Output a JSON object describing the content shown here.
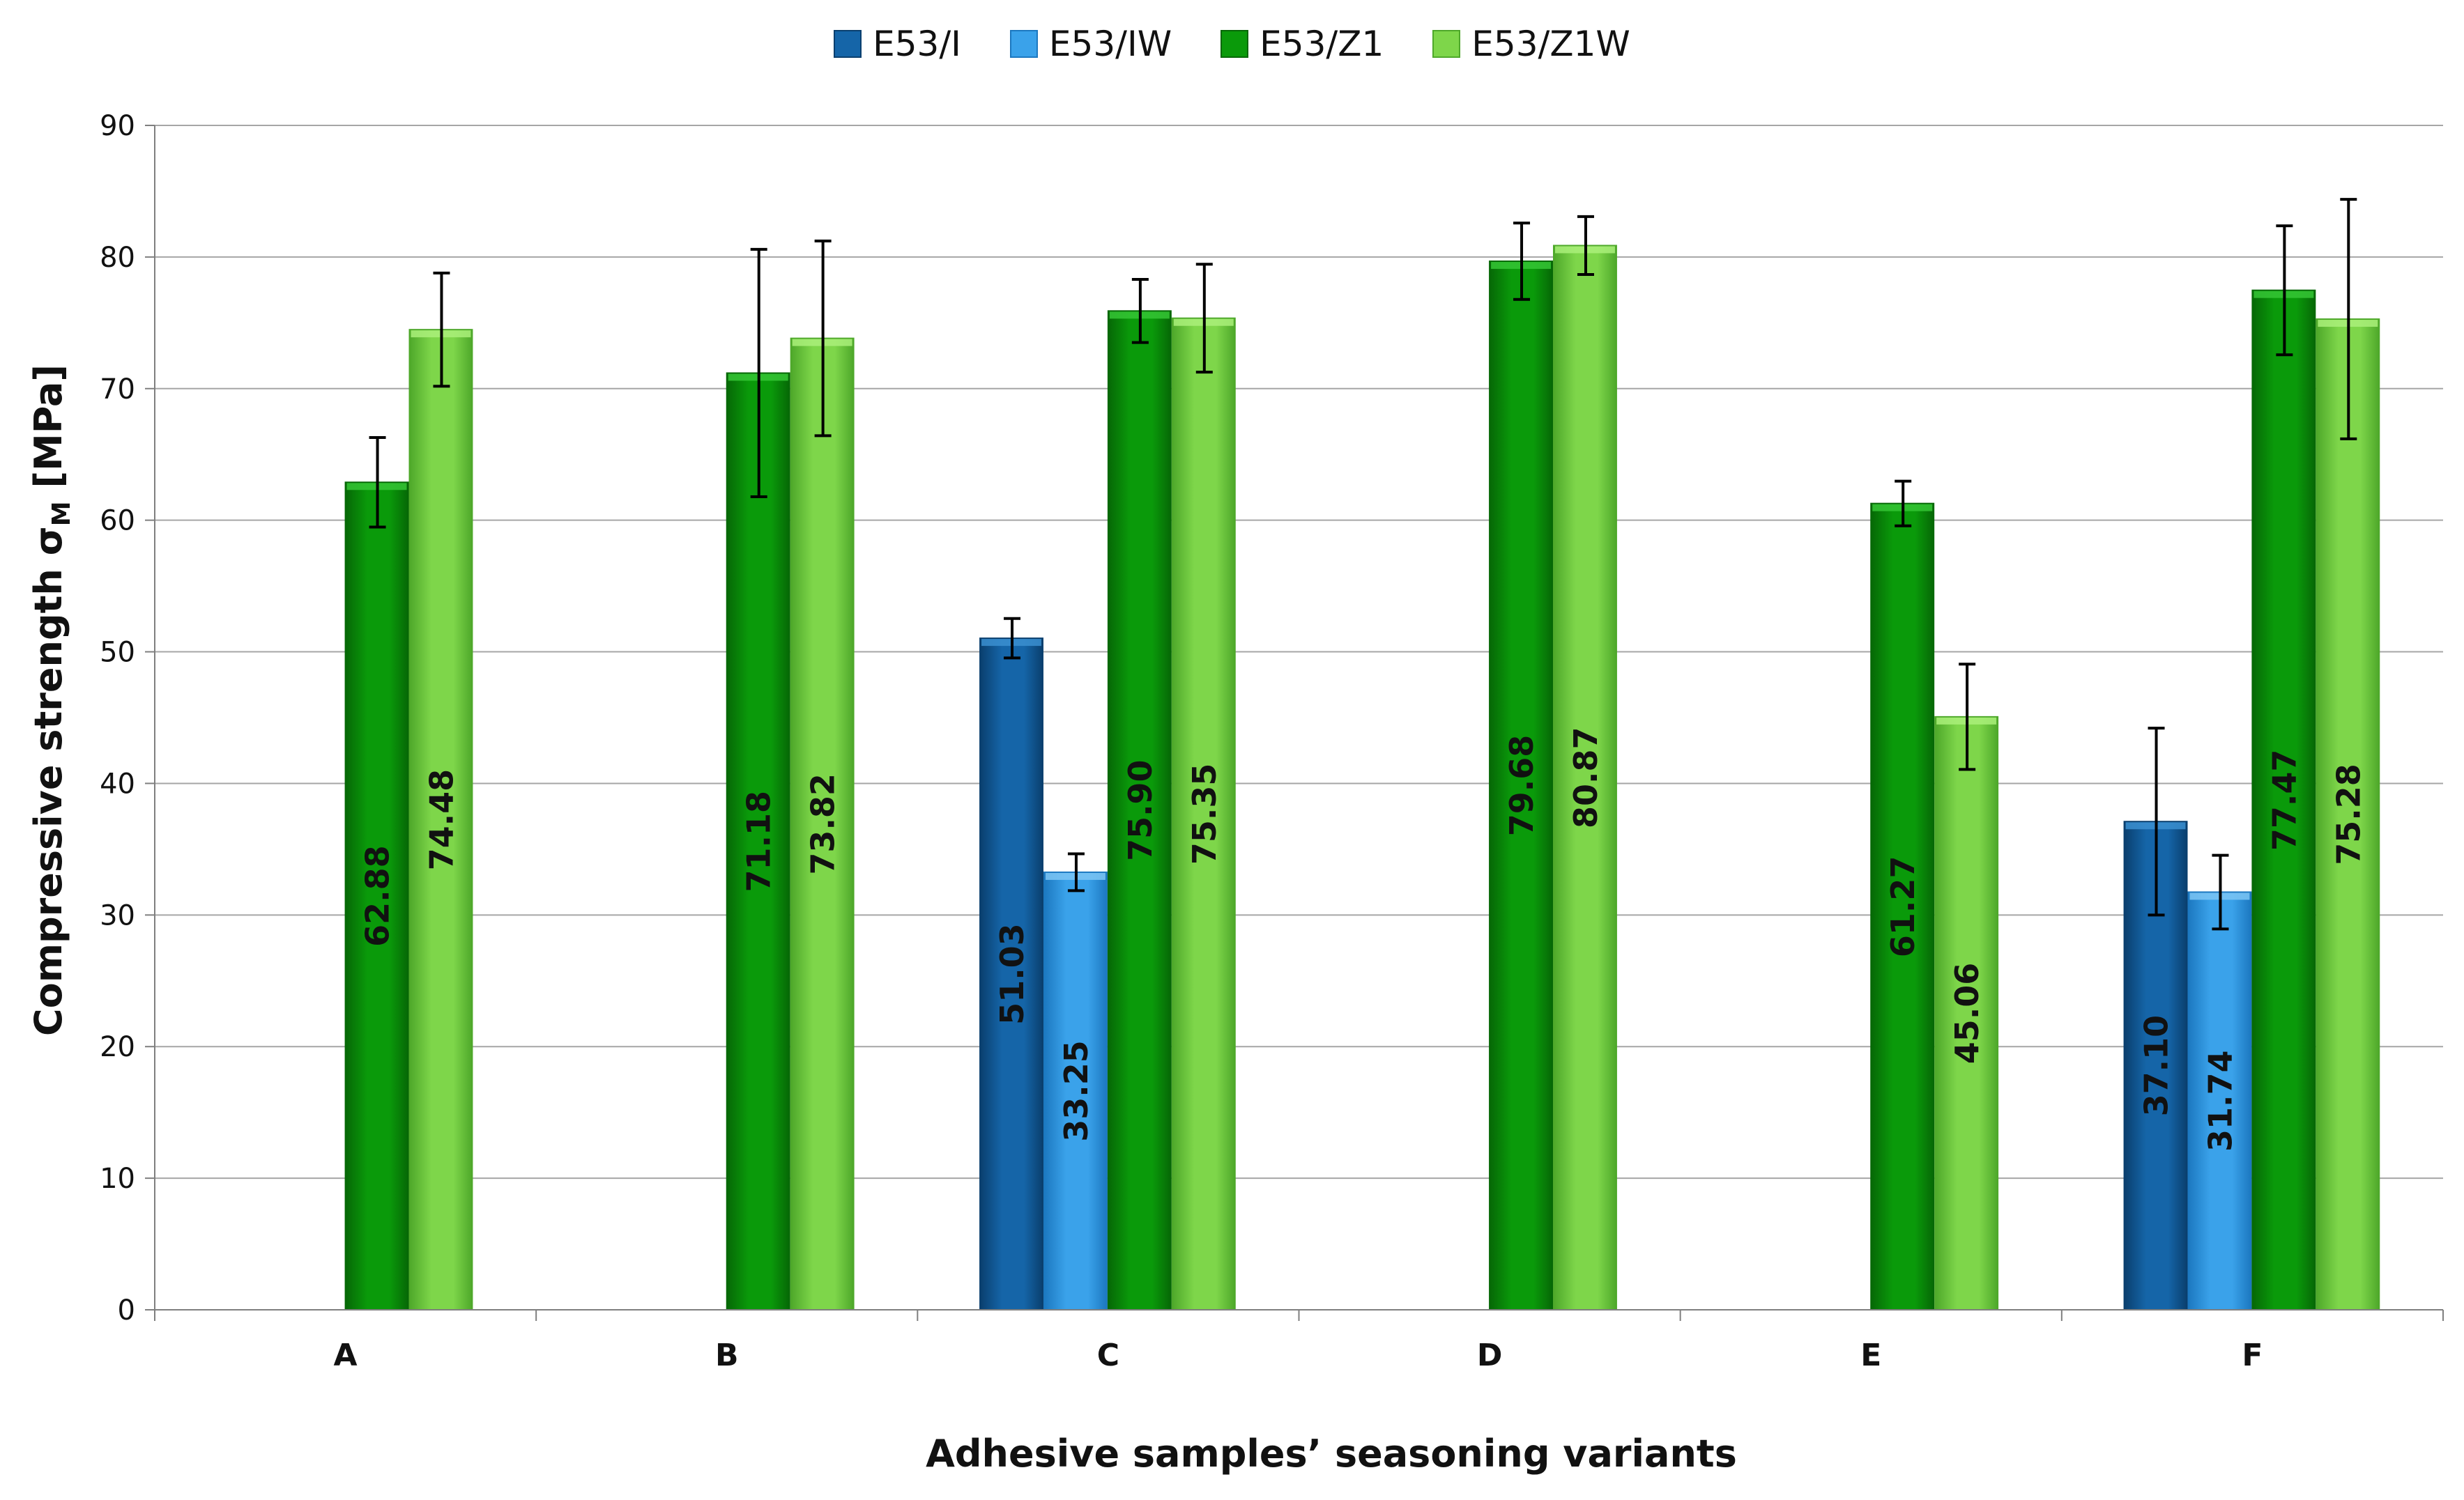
{
  "chart_data": {
    "type": "bar",
    "title": "",
    "xlabel": "Adhesive samples’ seasoning variants",
    "ylabel": "Compressive strength σ",
    "ylabel_sub": "M",
    "ylabel_unit": " [MPa]",
    "ylim": [
      0,
      90
    ],
    "yticks": [
      0,
      10,
      20,
      30,
      40,
      50,
      60,
      70,
      80,
      90
    ],
    "categories": [
      "A",
      "B",
      "C",
      "D",
      "E",
      "F"
    ],
    "legend_position": "top-center",
    "grid": true,
    "series": [
      {
        "name": "E53/I",
        "color": "#1565a8",
        "light": "#3b8fd0",
        "dark": "#0a3f6e",
        "values": [
          null,
          null,
          51.03,
          null,
          null,
          37.1
        ],
        "labels": [
          "",
          "",
          "51.03",
          "",
          "",
          "37.10"
        ],
        "err": [
          null,
          null,
          1.5,
          null,
          null,
          7.1
        ]
      },
      {
        "name": "E53/IW",
        "color": "#3aa2ea",
        "light": "#7cc6f5",
        "dark": "#1c78c0",
        "values": [
          null,
          null,
          33.25,
          null,
          null,
          31.74
        ],
        "labels": [
          "",
          "",
          "33.25",
          "",
          "",
          "31.74"
        ],
        "err": [
          null,
          null,
          1.4,
          null,
          null,
          2.8
        ]
      },
      {
        "name": "E53/Z1",
        "color": "#0a9a0a",
        "light": "#35c535",
        "dark": "#066806",
        "values": [
          62.88,
          71.18,
          75.9,
          79.68,
          61.27,
          77.47
        ],
        "labels": [
          "62.88",
          "71.18",
          "75.90",
          "79.68",
          "61.27",
          "77.47"
        ],
        "err": [
          3.4,
          9.4,
          2.4,
          2.9,
          1.7,
          4.9
        ]
      },
      {
        "name": "E53/Z1W",
        "color": "#7ed64a",
        "light": "#aaf07a",
        "dark": "#4ea82a",
        "values": [
          74.48,
          73.82,
          75.35,
          80.87,
          45.06,
          75.28
        ],
        "labels": [
          "74.48",
          "73.82",
          "75.35",
          "80.87",
          "45.06",
          "75.28"
        ],
        "err": [
          4.3,
          7.4,
          4.1,
          2.2,
          4.0,
          9.1
        ]
      }
    ]
  }
}
